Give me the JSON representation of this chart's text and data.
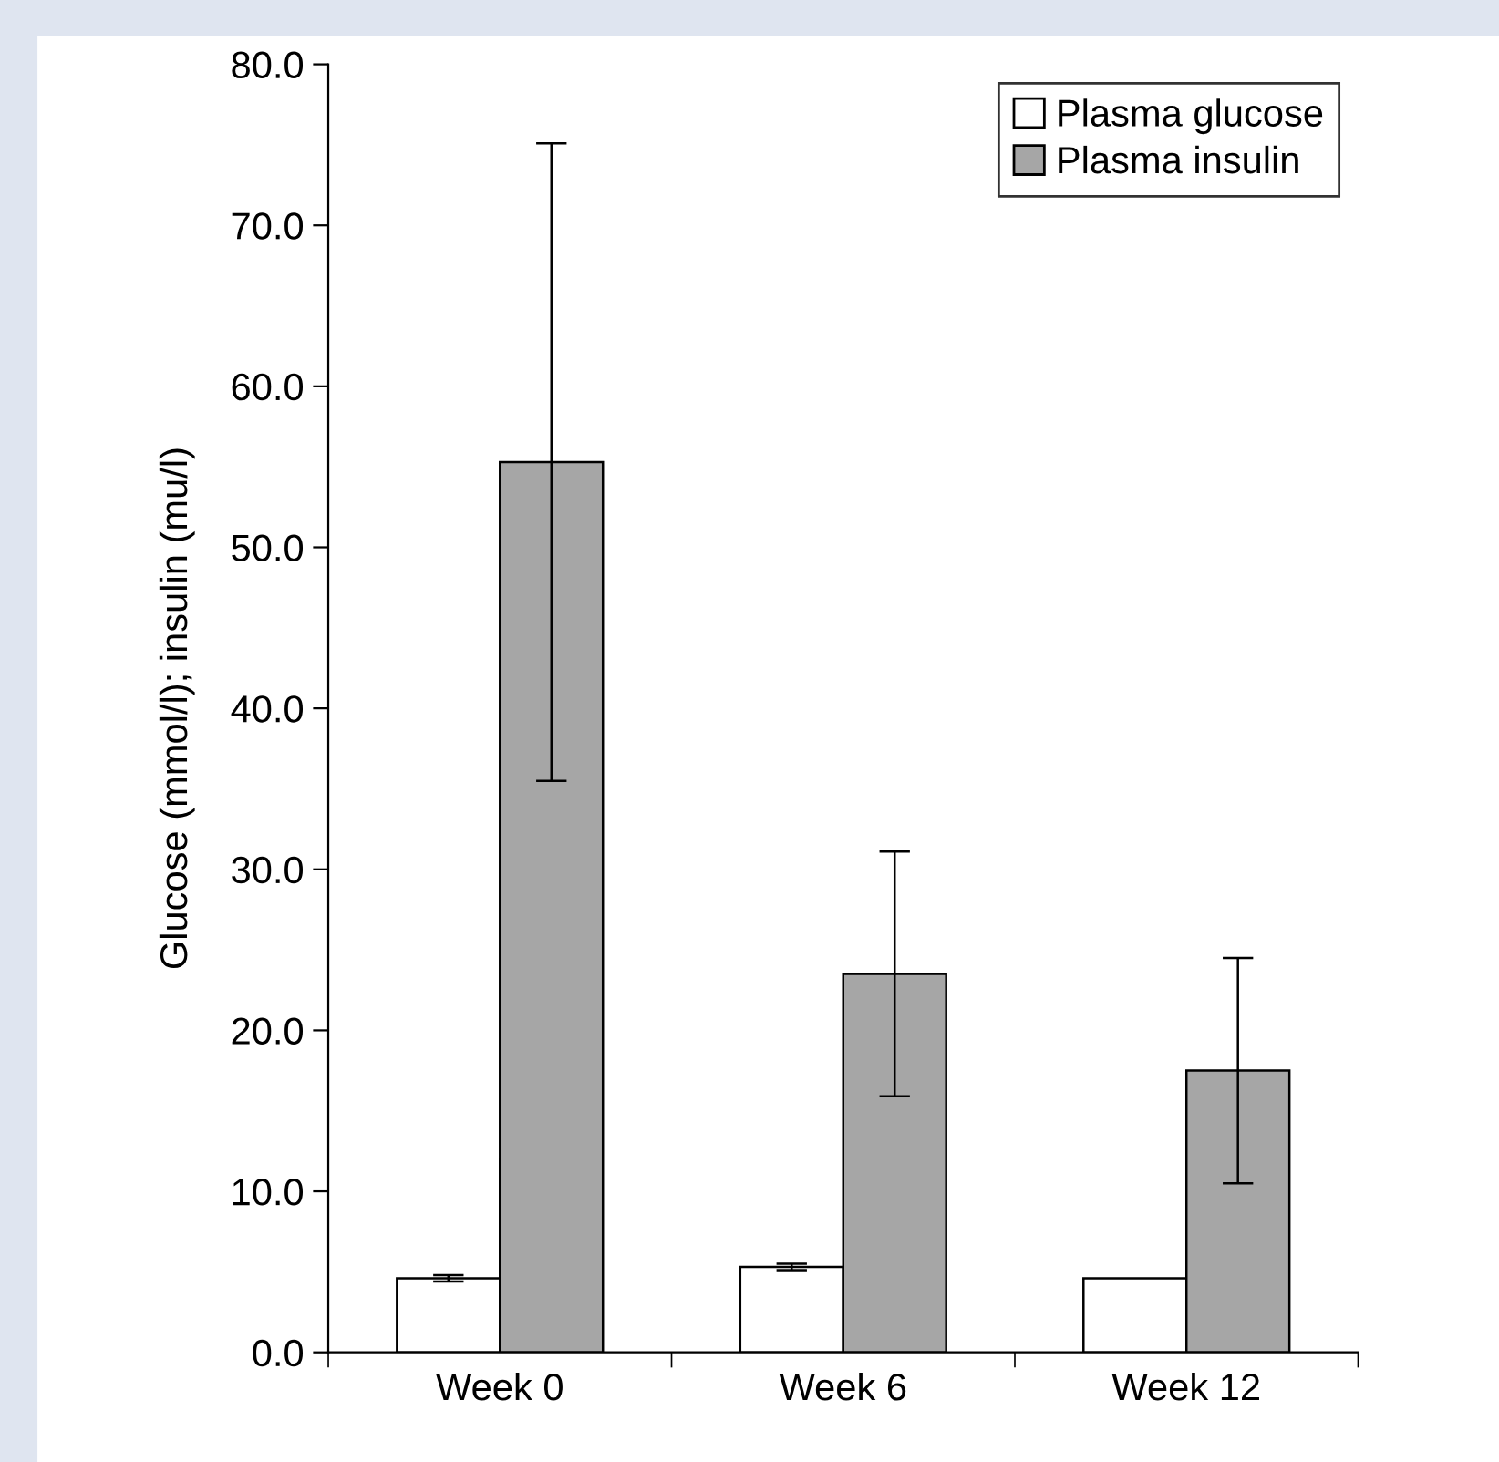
{
  "chart_data": {
    "type": "bar",
    "ylabel": "Glucose (mmol/l); insulin (mu/l)",
    "categories": [
      "Week 0",
      "Week 6",
      "Week 12"
    ],
    "series": [
      {
        "name": "Plasma glucose",
        "color": "#ffffff",
        "values": [
          4.6,
          5.3,
          4.6
        ],
        "errors": [
          0.2,
          0.2,
          null
        ]
      },
      {
        "name": "Plasma insulin",
        "color": "#a6a6a6",
        "values": [
          55.3,
          23.5,
          17.5
        ],
        "errors": [
          19.8,
          7.6,
          7.0
        ]
      }
    ],
    "ylim": [
      0,
      80
    ],
    "yticks": [
      {
        "value": 0,
        "label": "0.0"
      },
      {
        "value": 10,
        "label": "10.0"
      },
      {
        "value": 20,
        "label": "20.0"
      },
      {
        "value": 30,
        "label": "30.0"
      },
      {
        "value": 40,
        "label": "40.0"
      },
      {
        "value": 50,
        "label": "50.0"
      },
      {
        "value": 60,
        "label": "60.0"
      },
      {
        "value": 70,
        "label": "70.0"
      },
      {
        "value": 80,
        "label": "80.0"
      }
    ],
    "grid": false,
    "legend": "top right"
  }
}
